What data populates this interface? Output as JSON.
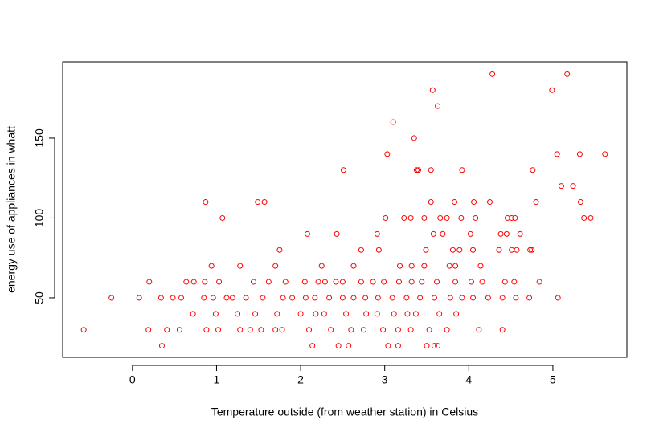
{
  "chart_data": {
    "type": "scatter",
    "xlabel": "Temperature outside (from weather station) in Celsius",
    "ylabel": "energy use of appliances in whatt",
    "color": "#ff0000",
    "xlim": [
      -0.83,
      5.88
    ],
    "ylim": [
      12.8,
      197.7
    ],
    "xticks": [
      0,
      1,
      2,
      3,
      4,
      5
    ],
    "yticks": [
      50,
      100,
      150
    ],
    "x": [
      4.28,
      5.17,
      3.57,
      4.99,
      3.63,
      3.1,
      3.35,
      3.03,
      5.05,
      5.32,
      5.62,
      2.51,
      3.38,
      3.4,
      3.55,
      3.92,
      4.76,
      5.1,
      5.24,
      0.87,
      1.49,
      1.57,
      3.55,
      3.83,
      4.06,
      4.25,
      4.8,
      5.33,
      1.07,
      3.01,
      3.23,
      3.31,
      3.47,
      3.66,
      3.74,
      3.91,
      4.08,
      4.46,
      4.51,
      4.55,
      5.37,
      5.45,
      2.08,
      2.43,
      2.91,
      3.58,
      3.69,
      4.02,
      4.38,
      4.45,
      4.61,
      1.75,
      2.72,
      2.93,
      3.49,
      3.81,
      3.89,
      4.05,
      4.36,
      4.51,
      4.57,
      4.73,
      4.75,
      0.94,
      1.28,
      1.7,
      2.25,
      2.63,
      3.18,
      3.32,
      3.47,
      3.77,
      3.84,
      4.14,
      0.2,
      0.64,
      0.73,
      0.86,
      1.03,
      1.44,
      1.62,
      1.82,
      2.05,
      2.21,
      2.29,
      2.42,
      2.5,
      2.72,
      2.86,
      2.99,
      3.17,
      3.32,
      3.44,
      3.62,
      3.84,
      4.03,
      4.16,
      4.43,
      4.54,
      4.84,
      -0.25,
      0.08,
      0.34,
      0.48,
      0.58,
      0.85,
      0.96,
      1.12,
      1.19,
      1.35,
      1.55,
      1.79,
      1.9,
      2.06,
      2.17,
      2.34,
      2.5,
      2.63,
      2.77,
      2.92,
      3.09,
      3.26,
      3.42,
      3.59,
      3.78,
      3.92,
      4.05,
      4.23,
      4.4,
      4.56,
      4.72,
      5.06,
      0.72,
      0.99,
      1.25,
      1.46,
      1.72,
      2.0,
      2.18,
      2.28,
      2.54,
      2.78,
      2.91,
      3.11,
      3.27,
      3.37,
      3.65,
      3.85,
      -0.58,
      0.19,
      0.41,
      0.56,
      0.88,
      1.02,
      1.28,
      1.4,
      1.53,
      1.7,
      1.78,
      2.1,
      2.36,
      2.6,
      2.75,
      2.98,
      3.16,
      3.31,
      3.53,
      3.74,
      4.12,
      4.4,
      0.35,
      2.14,
      2.45,
      2.57,
      3.04,
      3.16,
      3.5,
      3.59,
      3.63
    ],
    "values": [
      190,
      190,
      180,
      180,
      170,
      160,
      150,
      140,
      140,
      140,
      140,
      130,
      130,
      130,
      130,
      130,
      130,
      120,
      120,
      110,
      110,
      110,
      110,
      110,
      110,
      110,
      110,
      110,
      100,
      100,
      100,
      100,
      100,
      100,
      100,
      100,
      100,
      100,
      100,
      100,
      100,
      100,
      90,
      90,
      90,
      90,
      90,
      90,
      90,
      90,
      90,
      80,
      80,
      80,
      80,
      80,
      80,
      80,
      80,
      80,
      80,
      80,
      80,
      70,
      70,
      70,
      70,
      70,
      70,
      70,
      70,
      70,
      70,
      70,
      60,
      60,
      60,
      60,
      60,
      60,
      60,
      60,
      60,
      60,
      60,
      60,
      60,
      60,
      60,
      60,
      60,
      60,
      60,
      60,
      60,
      60,
      60,
      60,
      60,
      60,
      50,
      50,
      50,
      50,
      50,
      50,
      50,
      50,
      50,
      50,
      50,
      50,
      50,
      50,
      50,
      50,
      50,
      50,
      50,
      50,
      50,
      50,
      50,
      50,
      50,
      50,
      50,
      50,
      50,
      50,
      50,
      50,
      40,
      40,
      40,
      40,
      40,
      40,
      40,
      40,
      40,
      40,
      40,
      40,
      40,
      40,
      40,
      40,
      30,
      30,
      30,
      30,
      30,
      30,
      30,
      30,
      30,
      30,
      30,
      30,
      30,
      30,
      30,
      30,
      30,
      30,
      30,
      30,
      30,
      30,
      20,
      20,
      20,
      20,
      20,
      20,
      20,
      20,
      20
    ]
  }
}
